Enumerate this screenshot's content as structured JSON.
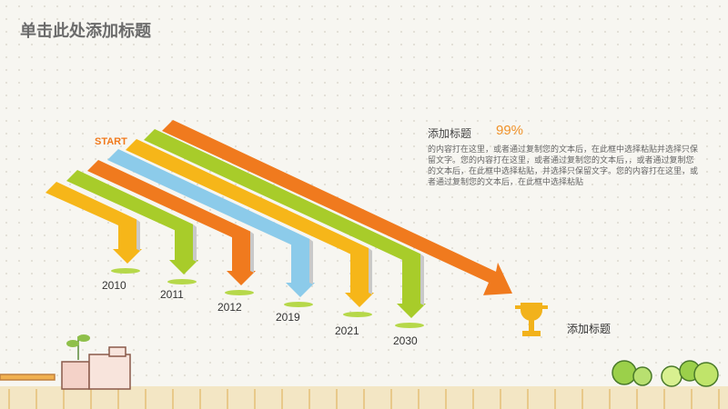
{
  "title": "单击此处添加标题",
  "start_label": "START",
  "years": [
    "2010",
    "2011",
    "2012",
    "2019",
    "2021",
    "2030"
  ],
  "text_block": {
    "heading": "添加标题",
    "percent": "99%",
    "paragraph": "的内容打在这里，或者通过复制您的文本后，在此框中选择粘贴并选择只保留文字。您的内容打在这里，或者通过复制您的文本后，，或者通过复制您的文本后，在此框中选择粘贴，并选择只保留文字。您的内容打在这里，或者通过复制您的文本后，在此框中选择粘贴"
  },
  "trophy_label": "添加标题"
}
